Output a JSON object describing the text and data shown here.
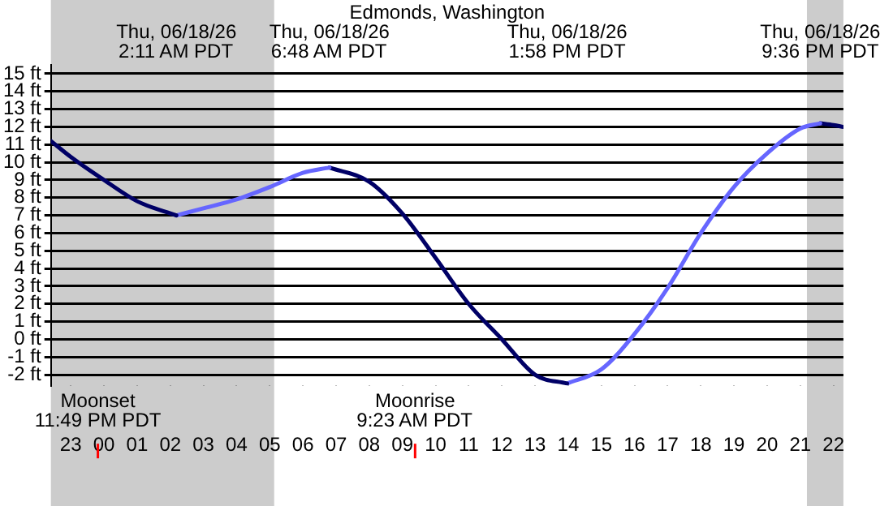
{
  "chart_data": {
    "type": "line",
    "title": "Edmonds, Washington",
    "xlim": [
      "--06-17T22:24",
      "--06-18T22:18"
    ],
    "xticks": [
      {
        "value": "--06-17T23:00",
        "label": "23"
      },
      {
        "value": "--06-18T00:00",
        "label": "00"
      },
      {
        "value": "--06-18T01:00",
        "label": "01"
      },
      {
        "value": "--06-18T02:00",
        "label": "02"
      },
      {
        "value": "--06-18T03:00",
        "label": "03"
      },
      {
        "value": "--06-18T04:00",
        "label": "04"
      },
      {
        "value": "--06-18T05:00",
        "label": "05"
      },
      {
        "value": "--06-18T06:00",
        "label": "06"
      },
      {
        "value": "--06-18T07:00",
        "label": "07"
      },
      {
        "value": "--06-18T08:00",
        "label": "08"
      },
      {
        "value": "--06-18T09:00",
        "label": "09"
      },
      {
        "value": "--06-18T10:00",
        "label": "10"
      },
      {
        "value": "--06-18T11:00",
        "label": "11"
      },
      {
        "value": "--06-18T12:00",
        "label": "12"
      },
      {
        "value": "--06-18T13:00",
        "label": "13"
      },
      {
        "value": "--06-18T14:00",
        "label": "14"
      },
      {
        "value": "--06-18T15:00",
        "label": "15"
      },
      {
        "value": "--06-18T16:00",
        "label": "16"
      },
      {
        "value": "--06-18T17:00",
        "label": "17"
      },
      {
        "value": "--06-18T18:00",
        "label": "18"
      },
      {
        "value": "--06-18T19:00",
        "label": "19"
      },
      {
        "value": "--06-18T20:00",
        "label": "20"
      },
      {
        "value": "--06-18T21:00",
        "label": "21"
      },
      {
        "value": "--06-18T22:00",
        "label": "22"
      }
    ],
    "ylim": [
      -2.6,
      15.5
    ],
    "yticks": [
      {
        "value": -2,
        "label": "-2 ft"
      },
      {
        "value": -1,
        "label": "-1 ft"
      },
      {
        "value": 0,
        "label": "0 ft"
      },
      {
        "value": 1,
        "label": "1 ft"
      },
      {
        "value": 2,
        "label": "2 ft"
      },
      {
        "value": 3,
        "label": "3 ft"
      },
      {
        "value": 4,
        "label": "4 ft"
      },
      {
        "value": 5,
        "label": "5 ft"
      },
      {
        "value": 6,
        "label": "6 ft"
      },
      {
        "value": 7,
        "label": "7 ft"
      },
      {
        "value": 8,
        "label": "8 ft"
      },
      {
        "value": 9,
        "label": "9 ft"
      },
      {
        "value": 10,
        "label": "10 ft"
      },
      {
        "value": 11,
        "label": "11 ft"
      },
      {
        "value": 12,
        "label": "12 ft"
      },
      {
        "value": 13,
        "label": "13 ft"
      },
      {
        "value": 14,
        "label": "14 ft"
      },
      {
        "value": 15,
        "label": "15 ft"
      }
    ],
    "grid": "y",
    "legend": false,
    "marker": "none",
    "line_style": "solid",
    "series": [
      {
        "color": "#000066",
        "x": [
          "--06-17T22:24",
          "--06-17T23:00",
          "--06-18T00:00",
          "--06-18T01:00",
          "--06-18T02:11"
        ],
        "values": [
          11.2,
          10.3,
          9.0,
          7.8,
          7.0
        ]
      },
      {
        "color": "#6666ff",
        "x": [
          "--06-18T02:11",
          "--06-18T03:00",
          "--06-18T04:00",
          "--06-18T05:00",
          "--06-18T06:00",
          "--06-18T06:48"
        ],
        "values": [
          7.0,
          7.4,
          7.9,
          8.6,
          9.4,
          9.7
        ]
      },
      {
        "color": "#000066",
        "x": [
          "--06-18T06:48",
          "--06-18T08:00",
          "--06-18T09:00",
          "--06-18T10:00",
          "--06-18T11:00",
          "--06-18T12:00",
          "--06-18T13:00",
          "--06-18T13:58"
        ],
        "values": [
          9.7,
          8.9,
          7.1,
          4.6,
          2.0,
          0.0,
          -2.0,
          -2.5
        ]
      },
      {
        "color": "#6666ff",
        "x": [
          "--06-18T13:58",
          "--06-18T15:00",
          "--06-18T16:00",
          "--06-18T17:00",
          "--06-18T18:00",
          "--06-18T19:00",
          "--06-18T20:00",
          "--06-18T21:00",
          "--06-18T21:36"
        ],
        "values": [
          -2.5,
          -1.7,
          0.3,
          2.9,
          6.0,
          8.6,
          10.5,
          11.9,
          12.2
        ]
      },
      {
        "color": "#000066",
        "x": [
          "--06-18T21:36",
          "--06-18T22:00",
          "--06-18T22:18"
        ],
        "values": [
          12.2,
          12.1,
          12.0
        ]
      }
    ],
    "annotations": [
      "Thu, 06/18/26\n2:11 AM PDT",
      "Thu, 06/18/26\n6:48 AM PDT",
      "Thu, 06/18/26\n1:58 PM PDT",
      "Thu, 06/18/26\n9:36 PM PDT"
    ],
    "bands": [
      {
        "axis": "x",
        "from": "--06-17T22:24",
        "to": "--06-18T05:08",
        "color": "#cccccc"
      },
      {
        "axis": "x",
        "from": "--06-18T21:12",
        "to": "--06-18T22:18",
        "color": "#cccccc"
      }
    ],
    "ref_lines": [
      {
        "axis": "x",
        "value": "--06-17T23:49",
        "label": "Moonset\n11:49 PM PDT",
        "color": "#ff0000"
      },
      {
        "axis": "x",
        "value": "--06-18T09:23",
        "label": "Moonrise\n9:23 AM PDT",
        "color": "#ff0000"
      }
    ]
  }
}
